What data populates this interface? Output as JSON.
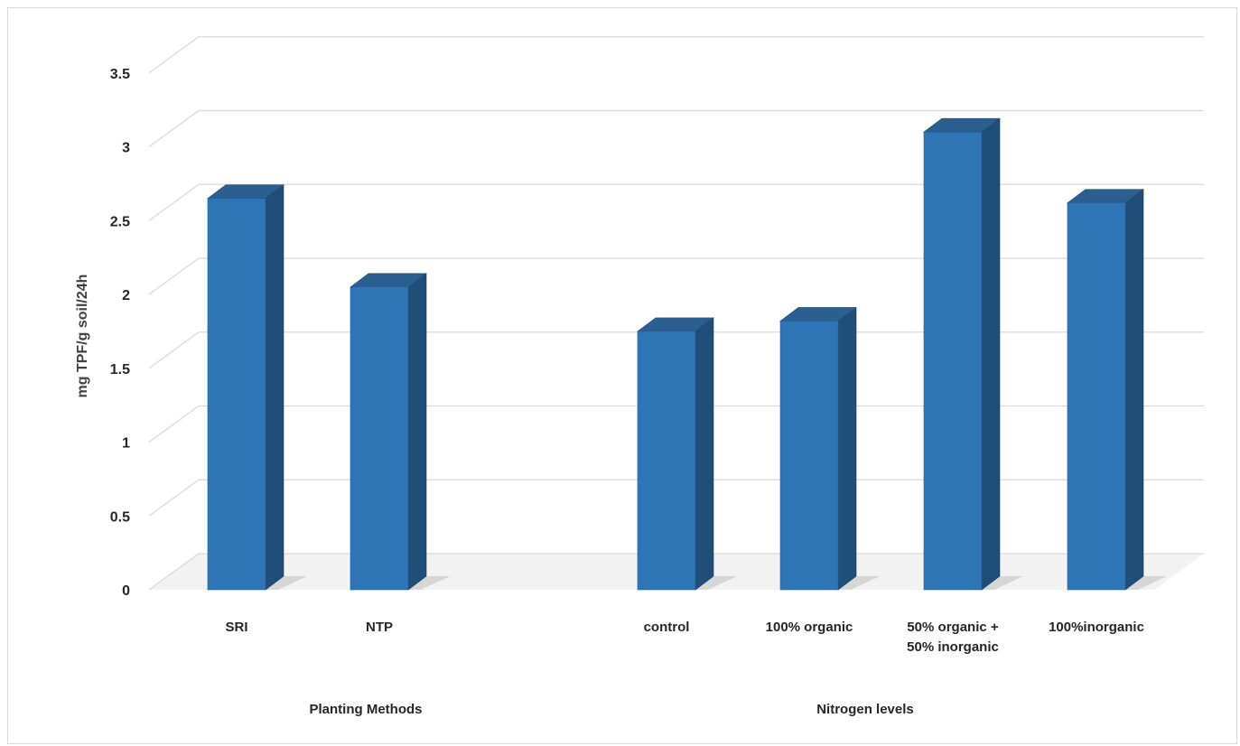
{
  "chart_data": {
    "type": "bar",
    "title": "",
    "ylabel": "mg TPF/g soil/24h",
    "ylim": [
      0,
      3.5
    ],
    "yticks": [
      "0",
      "0.5",
      "1",
      "1.5",
      "2",
      "2.5",
      "3",
      "3.5"
    ],
    "grid": true,
    "legend": "none",
    "bar_color": "#2e75b6",
    "groups": [
      {
        "name": "Planting Methods",
        "categories": [
          [
            "SRI"
          ],
          [
            "NTP"
          ]
        ],
        "values": [
          2.65,
          2.05
        ]
      },
      {
        "name": "Nitrogen levels",
        "categories": [
          [
            "control"
          ],
          [
            "100% organic"
          ],
          [
            "50% organic +",
            "50% inorganic"
          ],
          [
            "100%inorganic"
          ]
        ],
        "values": [
          1.75,
          1.82,
          3.1,
          2.62
        ]
      }
    ]
  }
}
